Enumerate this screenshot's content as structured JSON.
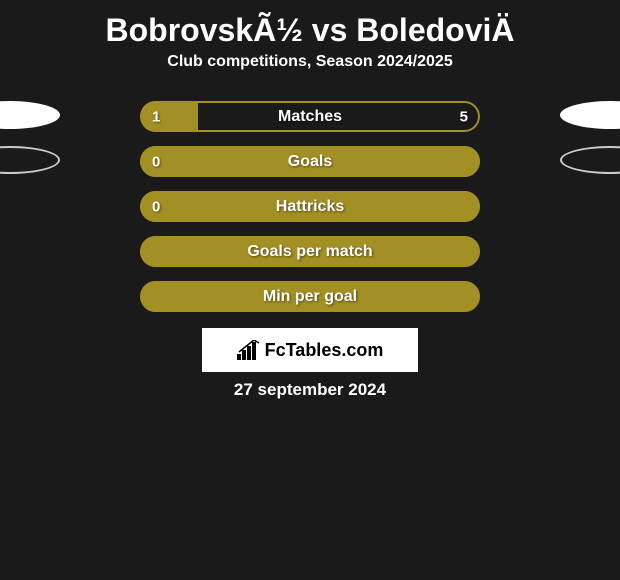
{
  "title": "BobrovskÃ½ vs BoledoviÄ",
  "subtitle": "Club competitions, Season 2024/2025",
  "bar_colors": {
    "fill": "#a39024",
    "border": "#a39024",
    "empty": "#1a1a1a",
    "oval": "#ffffff",
    "oval_border": "#cccccc"
  },
  "rows": [
    {
      "label": "Matches",
      "left_val": "1",
      "right_val": "5",
      "left_pct": 17,
      "right_pct": 83,
      "show_ovals": true,
      "oval_fill": true
    },
    {
      "label": "Goals",
      "left_val": "0",
      "right_val": "",
      "left_pct": 0,
      "right_pct": 100,
      "show_ovals": true,
      "oval_fill": false
    },
    {
      "label": "Hattricks",
      "left_val": "0",
      "right_val": "",
      "left_pct": 0,
      "right_pct": 100,
      "show_ovals": false,
      "oval_fill": false
    },
    {
      "label": "Goals per match",
      "left_val": "",
      "right_val": "",
      "left_pct": 0,
      "right_pct": 100,
      "show_ovals": false,
      "oval_fill": false
    },
    {
      "label": "Min per goal",
      "left_val": "",
      "right_val": "",
      "left_pct": 0,
      "right_pct": 100,
      "show_ovals": false,
      "oval_fill": false
    }
  ],
  "brand": "FcTables.com",
  "date": "27 september 2024"
}
